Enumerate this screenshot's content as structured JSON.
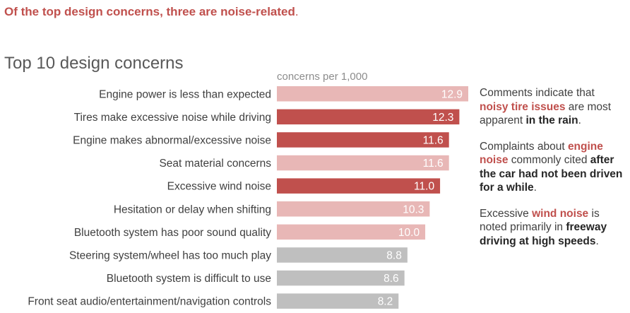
{
  "headline": {
    "text": "Of the top design concerns, three are noise-related",
    "punct": "."
  },
  "title": "Top 10 design concerns",
  "unit_label": "concerns per 1,000",
  "colors": {
    "highlight": "#c0504d",
    "light": "#e8b7b6",
    "gray": "#bfbfbf",
    "accent_text": "#c0504d"
  },
  "chart_data": {
    "type": "bar",
    "orientation": "horizontal",
    "title": "Top 10 design concerns",
    "ylabel": "concerns per 1,000",
    "categories": [
      "Engine power is less than expected",
      "Tires make excessive noise while driving",
      "Engine makes abnormal/excessive noise",
      "Seat material concerns",
      "Excessive wind noise",
      "Hesitation or delay when shifting",
      "Bluetooth system has poor sound quality",
      "Steering system/wheel has too much play",
      "Bluetooth system is difficult to use",
      "Front seat audio/entertainment/navigation controls"
    ],
    "values": [
      12.9,
      12.3,
      11.6,
      11.6,
      11.0,
      10.3,
      10.0,
      8.8,
      8.6,
      8.2
    ],
    "labels": [
      "12.9",
      "12.3",
      "11.6",
      "11.6",
      "11.0",
      "10.3",
      "10.0",
      "8.8",
      "8.6",
      "8.2"
    ],
    "bar_color_keys": [
      "light",
      "highlight",
      "highlight",
      "light",
      "highlight",
      "light",
      "light",
      "gray",
      "gray",
      "gray"
    ],
    "xlim": [
      0,
      12.9
    ],
    "grid": false,
    "legend": "none"
  },
  "notes": [
    {
      "parts": [
        {
          "t": "Comments indicate that ",
          "s": "plain"
        },
        {
          "t": "noisy tire issues",
          "s": "hl"
        },
        {
          "t": " are most apparent ",
          "s": "plain"
        },
        {
          "t": "in the rain",
          "s": "em"
        },
        {
          "t": ".",
          "s": "plain"
        }
      ]
    },
    {
      "parts": [
        {
          "t": "Complaints about ",
          "s": "plain"
        },
        {
          "t": "engine noise",
          "s": "hl"
        },
        {
          "t": " commonly cited ",
          "s": "plain"
        },
        {
          "t": "after the car had not been driven for a while",
          "s": "em"
        },
        {
          "t": ".",
          "s": "plain"
        }
      ]
    },
    {
      "parts": [
        {
          "t": "Excessive ",
          "s": "plain"
        },
        {
          "t": "wind noise",
          "s": "hl"
        },
        {
          "t": " is noted primarily in ",
          "s": "plain"
        },
        {
          "t": "freeway driving at high speeds",
          "s": "em"
        },
        {
          "t": ".",
          "s": "plain"
        }
      ]
    }
  ]
}
